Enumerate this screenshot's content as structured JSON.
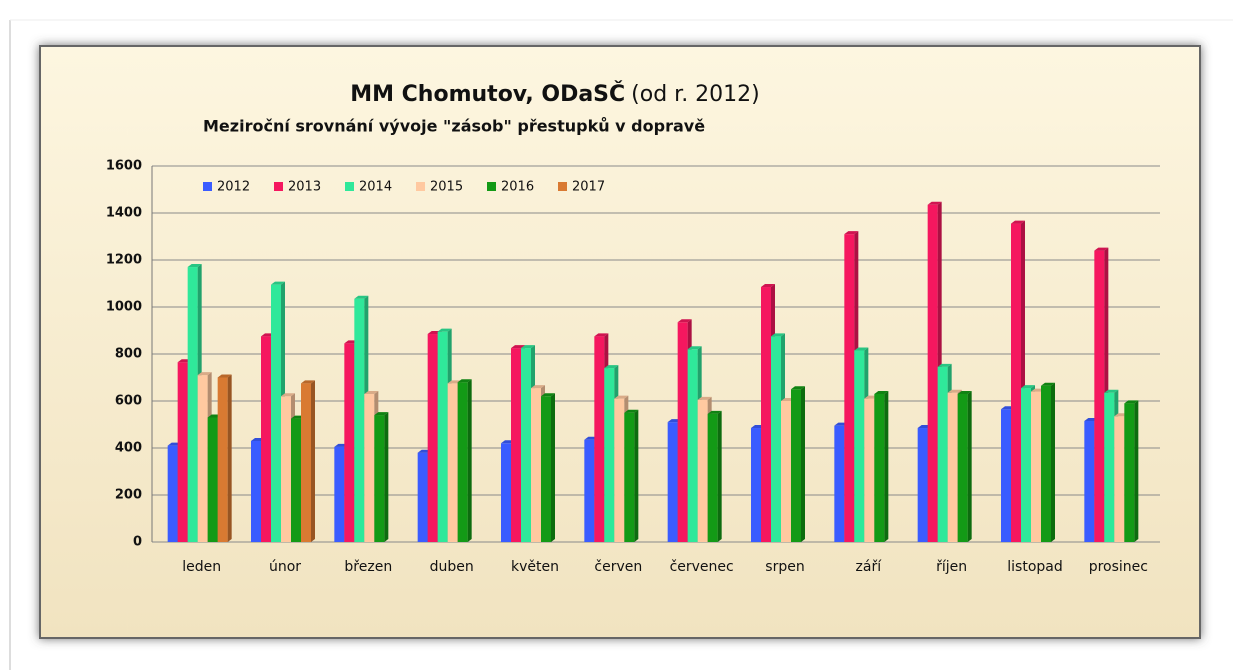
{
  "chart_data": {
    "type": "bar",
    "title": "MM Chomutov, ODaSČ",
    "title_note": "(od r. 2012)",
    "subtitle": "Meziroční srovnání vývoje \"zásob\"  přestupků v dopravě",
    "categories": [
      "leden",
      "únor",
      "březen",
      "duben",
      "květen",
      "červen",
      "červenec",
      "srpen",
      "září",
      "říjen",
      "listopad",
      "prosinec"
    ],
    "series": [
      {
        "name": "2012",
        "color": "#3a5cff",
        "values": [
          410,
          430,
          405,
          380,
          420,
          435,
          510,
          485,
          495,
          485,
          565,
          515
        ]
      },
      {
        "name": "2013",
        "color": "#f5175f",
        "values": [
          765,
          875,
          845,
          885,
          825,
          875,
          935,
          1085,
          1310,
          1435,
          1355,
          1240
        ]
      },
      {
        "name": "2014",
        "color": "#2fe89a",
        "values": [
          1170,
          1095,
          1035,
          895,
          825,
          740,
          820,
          875,
          815,
          745,
          655,
          635
        ]
      },
      {
        "name": "2015",
        "color": "#ffc9a0",
        "values": [
          710,
          620,
          630,
          675,
          655,
          610,
          605,
          600,
          610,
          635,
          640,
          535
        ]
      },
      {
        "name": "2016",
        "color": "#139a16",
        "values": [
          530,
          525,
          540,
          680,
          620,
          550,
          545,
          650,
          630,
          630,
          665,
          590
        ]
      },
      {
        "name": "2017",
        "color": "#d97a32",
        "values": [
          700,
          675,
          null,
          null,
          null,
          null,
          null,
          null,
          null,
          null,
          null,
          null
        ]
      }
    ],
    "ylim": [
      0,
      1600
    ],
    "yticks": [
      0,
      200,
      400,
      600,
      800,
      1000,
      1200,
      1400,
      1600
    ],
    "grid": true,
    "legend": "top-left"
  }
}
